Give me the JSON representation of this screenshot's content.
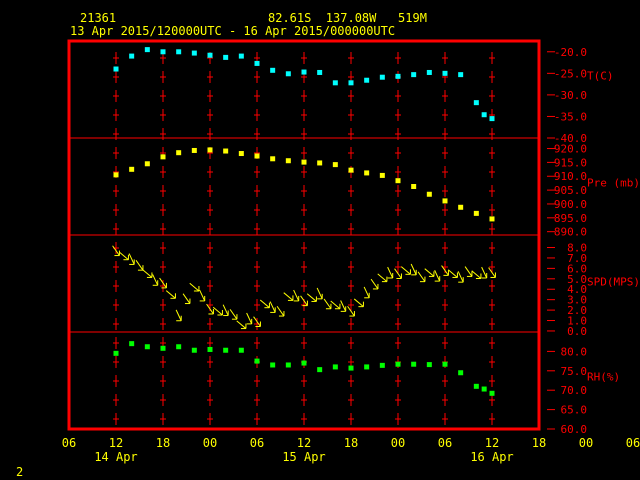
{
  "header": {
    "station": "21361",
    "location": "82.61S  137.08W   519M",
    "period": "13 Apr 2015/120000UTC - 16 Apr 2015/000000UTC"
  },
  "footer": {
    "page": "2"
  },
  "colors": {
    "frame": "#ff0000",
    "text": "#ffff00",
    "axis_labels": "#ff0000",
    "temp": "#00ffff",
    "pres": "#ffff00",
    "wind": "#ffff00",
    "rh": "#00ff00"
  },
  "chart_data": {
    "type": "line",
    "x_ticks": [
      "06",
      "12",
      "18",
      "00",
      "06",
      "12",
      "18",
      "00",
      "06",
      "12",
      "18",
      "00",
      "06"
    ],
    "x_day_labels": [
      {
        "label": "14 Apr",
        "at": "00"
      },
      {
        "label": "15 Apr",
        "at": "00"
      },
      {
        "label": "16 Apr",
        "at": "00"
      }
    ],
    "x_hours": [
      -6,
      54
    ],
    "panels": [
      {
        "id": "temp",
        "label": "T(C)",
        "ticks": [
          "-20.0",
          "-25.0",
          "-30.0",
          "-35.0",
          "-40.0"
        ],
        "tick_values": [
          -20,
          -25,
          -30,
          -35,
          -40
        ],
        "ylim": [
          -40,
          -17.5
        ],
        "x": [
          0,
          2,
          4,
          6,
          8,
          10,
          12,
          14,
          16,
          18,
          20,
          22,
          24,
          26,
          28,
          30,
          32,
          34,
          36,
          38,
          40,
          42,
          44,
          46,
          47,
          48
        ],
        "values": [
          -24,
          -21,
          -19.5,
          -20,
          -20,
          -20.3,
          -20.8,
          -21.3,
          -21,
          -22.7,
          -24.3,
          -25.1,
          -24.7,
          -24.8,
          -27.2,
          -27.2,
          -26.6,
          -25.9,
          -25.7,
          -25.3,
          -24.8,
          -25,
          -25.3,
          -31.8,
          -34.6,
          -35.5
        ]
      },
      {
        "id": "pres",
        "label": "Pre (mb)",
        "ticks": [
          "920.0",
          "915.0",
          "910.0",
          "905.0",
          "900.0",
          "895.0",
          "890.0"
        ],
        "tick_values": [
          920,
          915,
          910,
          905,
          900,
          895,
          890
        ],
        "ylim": [
          888.8,
          923.8
        ],
        "x": [
          0,
          2,
          4,
          6,
          8,
          10,
          12,
          14,
          16,
          18,
          20,
          22,
          24,
          26,
          28,
          30,
          32,
          34,
          36,
          38,
          40,
          42,
          44,
          46,
          48
        ],
        "values": [
          910.5,
          912.5,
          914.5,
          917,
          918.5,
          919.3,
          919.5,
          919.1,
          918.2,
          917.3,
          916.3,
          915.6,
          915.1,
          914.8,
          914.2,
          912.2,
          911.2,
          910.3,
          908.4,
          906.3,
          903.5,
          901.1,
          898.8,
          896.6,
          894.6
        ]
      },
      {
        "id": "spd",
        "label": "SPD(MPS)",
        "ticks": [
          "8.0",
          "7.0",
          "6.0",
          "5.0",
          "4.0",
          "3.0",
          "2.0",
          "1.0",
          "0.0"
        ],
        "tick_values": [
          8,
          7,
          6,
          5,
          4,
          3,
          2,
          1,
          0
        ],
        "ylim": [
          -0.1,
          9.2
        ],
        "x": [
          0,
          1,
          2,
          3,
          4,
          5,
          6,
          7,
          8,
          9,
          10,
          11,
          12,
          13,
          14,
          15,
          16,
          17,
          18,
          19,
          20,
          21,
          22,
          23,
          24,
          25,
          26,
          27,
          28,
          29,
          30,
          31,
          32,
          33,
          34,
          35,
          36,
          37,
          38,
          39,
          40,
          41,
          42,
          43,
          44,
          45,
          46,
          47,
          48
        ],
        "values": [
          7.7,
          7.2,
          6.9,
          6.3,
          5.5,
          4.9,
          4.6,
          3.5,
          1.5,
          3.1,
          4.2,
          3.4,
          2.1,
          1.9,
          2.0,
          1.6,
          0.6,
          1.2,
          0.9,
          2.6,
          2.3,
          1.9,
          3.3,
          3.4,
          2.9,
          3.2,
          3.6,
          2.6,
          2.5,
          2.4,
          1.9,
          2.7,
          3.7,
          4.5,
          5.1,
          5.6,
          5.5,
          5.8,
          5.9,
          5.2,
          5.6,
          5.3,
          5.8,
          5.5,
          5.2,
          5.7,
          5.4,
          5.6,
          5.6
        ]
      },
      {
        "id": "rh",
        "label": "RH(%)",
        "ticks": [
          "80.0",
          "75.0",
          "70.0",
          "65.0",
          "60.0"
        ],
        "tick_values": [
          80,
          75,
          70,
          65,
          60
        ],
        "ylim": [
          60,
          85
        ],
        "x": [
          0,
          2,
          4,
          6,
          8,
          10,
          12,
          14,
          16,
          18,
          20,
          22,
          24,
          26,
          28,
          30,
          32,
          34,
          36,
          38,
          40,
          42,
          44,
          46,
          47,
          48
        ],
        "values": [
          79.5,
          82,
          81.2,
          80.8,
          81.2,
          80.3,
          80.5,
          80.3,
          80.3,
          77.5,
          76.5,
          76.5,
          77,
          75.3,
          76,
          75.7,
          76,
          76.4,
          76.7,
          76.7,
          76.6,
          76.7,
          74.5,
          71,
          70.3,
          69.2
        ]
      }
    ]
  }
}
